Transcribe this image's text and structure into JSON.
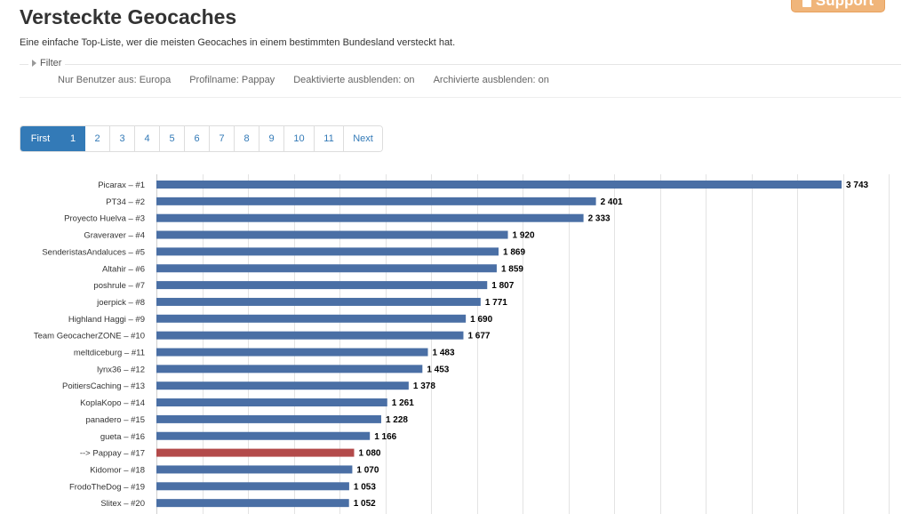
{
  "page": {
    "title": "Versteckte Geocaches",
    "subtitle": "Eine einfache Top-Liste, wer die meisten Geocaches in einem bestimmten Bundesland versteckt hat.",
    "support_label": "Support"
  },
  "filter": {
    "legend": "Filter",
    "options": [
      "Nur Benutzer aus: Europa",
      "Profilname: Pappay",
      "Deaktivierte ausblenden: on",
      "Archivierte ausblenden: on"
    ]
  },
  "pagination": [
    "First",
    "1",
    "2",
    "3",
    "4",
    "5",
    "6",
    "7",
    "8",
    "9",
    "10",
    "11",
    "Next"
  ],
  "colors": {
    "bar": "#4a6fa5",
    "highlight": "#b34a4a",
    "grid": "#e3e3e3",
    "accent": "#337ab7",
    "support": "#f0b57a"
  },
  "chart_data": {
    "type": "bar",
    "orientation": "horizontal",
    "categories": [
      "Picarax – #1",
      "PT34 – #2",
      "Proyecto Huelva – #3",
      "Graveraver – #4",
      "SenderistasAndaluces – #5",
      "Altahir – #6",
      "poshrule – #7",
      "joerpick – #8",
      "Highland Haggi – #9",
      "Team GeocacherZONE – #10",
      "meltdiceburg – #11",
      "lynx36 – #12",
      "PoitiersCaching – #13",
      "KoplaKopo – #14",
      "panadero – #15",
      "gueta – #16",
      "--> Pappay – #17",
      "Kidomor – #18",
      "FrodoTheDog – #19",
      "Slitex – #20"
    ],
    "values": [
      3743,
      2401,
      2333,
      1920,
      1869,
      1859,
      1807,
      1771,
      1690,
      1677,
      1483,
      1453,
      1378,
      1261,
      1228,
      1166,
      1080,
      1070,
      1053,
      1052
    ],
    "value_labels": [
      "3 743",
      "2 401",
      "2 333",
      "1 920",
      "1 869",
      "1 859",
      "1 807",
      "1 771",
      "1 690",
      "1 677",
      "1 483",
      "1 453",
      "1 378",
      "1 261",
      "1 228",
      "1 166",
      "1 080",
      "1 070",
      "1 053",
      "1 052"
    ],
    "highlight_index": 16,
    "xlim": [
      0,
      4000
    ],
    "grid_step": 250,
    "grid": true
  }
}
